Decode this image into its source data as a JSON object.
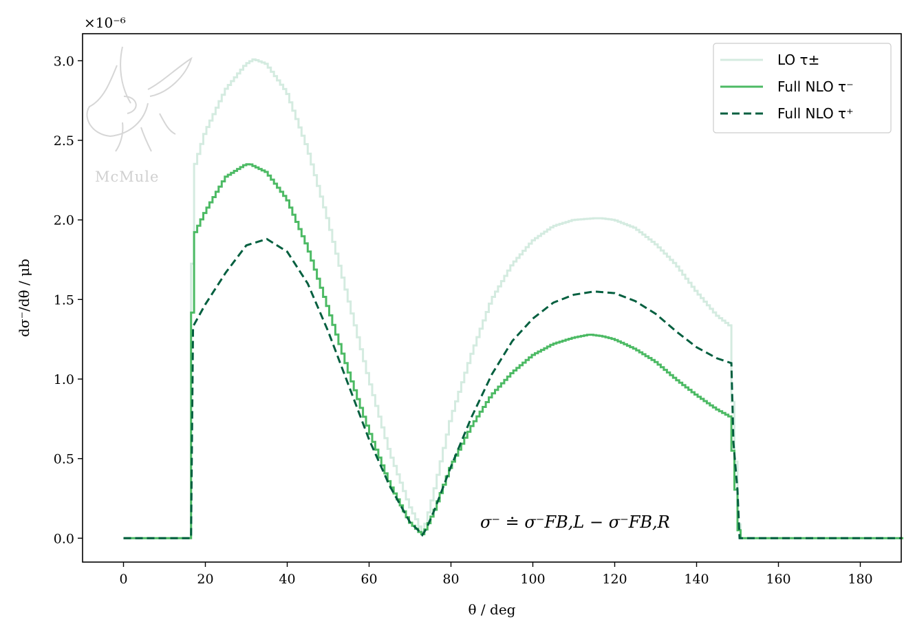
{
  "chart_data": {
    "type": "line",
    "title": "",
    "xlabel": "θ / deg",
    "ylabel": "dσ⁻/dθ / μb",
    "y_multiplier_label": "×10⁻⁶",
    "xlim": [
      -10,
      190
    ],
    "ylim": [
      -0.15,
      3.17
    ],
    "xticks": [
      0,
      20,
      40,
      60,
      80,
      100,
      120,
      140,
      160,
      180
    ],
    "yticks": [
      0.0,
      0.5,
      1.0,
      1.5,
      2.0,
      2.5,
      3.0
    ],
    "xtick_labels": [
      "0",
      "20",
      "40",
      "60",
      "80",
      "100",
      "120",
      "140",
      "160",
      "180"
    ],
    "ytick_labels": [
      "0.0",
      "0.5",
      "1.0",
      "1.5",
      "2.0",
      "2.5",
      "3.0"
    ],
    "legend_position": "top-right",
    "annotation": "σ⁻ ≐ σ⁻FB,L − σ⁻FB,R",
    "watermark": "McMule",
    "series": [
      {
        "name": "LO τ±",
        "style": "step",
        "color": "#d4ebe0",
        "x": [
          0,
          16.5,
          17,
          20,
          25,
          30,
          32,
          35,
          40,
          45,
          50,
          55,
          60,
          65,
          70,
          72,
          73,
          74,
          76,
          80,
          85,
          90,
          95,
          100,
          105,
          110,
          115,
          117,
          120,
          125,
          130,
          135,
          140,
          145,
          148.5,
          149,
          150,
          150.5,
          190
        ],
        "y": [
          0,
          0,
          2.3,
          2.55,
          2.82,
          2.98,
          3.01,
          2.98,
          2.8,
          2.45,
          2.0,
          1.5,
          1.0,
          0.55,
          0.2,
          0.1,
          0.03,
          0.1,
          0.3,
          0.75,
          1.15,
          1.5,
          1.72,
          1.87,
          1.96,
          2.0,
          2.01,
          2.01,
          2.0,
          1.95,
          1.85,
          1.72,
          1.55,
          1.4,
          1.33,
          0.7,
          0.35,
          0,
          0
        ]
      },
      {
        "name": "Full NLO τ⁻",
        "style": "step",
        "color": "#4cba64",
        "x": [
          0,
          16.5,
          17,
          20,
          25,
          30,
          31,
          35,
          40,
          45,
          50,
          55,
          60,
          65,
          70,
          72,
          73,
          74,
          76,
          80,
          85,
          90,
          95,
          100,
          105,
          110,
          114,
          117,
          120,
          125,
          130,
          135,
          140,
          145,
          148.5,
          149,
          150,
          150.5,
          190
        ],
        "y": [
          0,
          0,
          1.89,
          2.05,
          2.27,
          2.35,
          2.35,
          2.3,
          2.13,
          1.83,
          1.45,
          1.05,
          0.68,
          0.35,
          0.1,
          0.05,
          0.02,
          0.06,
          0.17,
          0.45,
          0.7,
          0.9,
          1.04,
          1.15,
          1.22,
          1.26,
          1.28,
          1.27,
          1.25,
          1.19,
          1.11,
          1.0,
          0.9,
          0.81,
          0.76,
          0.48,
          0.2,
          0,
          0
        ]
      },
      {
        "name": "Full NLO τ⁺",
        "style": "dashed",
        "color": "#035f3f",
        "x": [
          0,
          16.5,
          17,
          20,
          25,
          30,
          35,
          40,
          45,
          50,
          55,
          60,
          65,
          70,
          72,
          73,
          74,
          76,
          80,
          85,
          90,
          95,
          100,
          105,
          110,
          115,
          120,
          125,
          130,
          135,
          140,
          145,
          148.5,
          149,
          150,
          150.5,
          190
        ],
        "y": [
          0,
          0,
          1.33,
          1.47,
          1.67,
          1.84,
          1.88,
          1.8,
          1.6,
          1.3,
          0.96,
          0.62,
          0.33,
          0.1,
          0.05,
          0.02,
          0.06,
          0.18,
          0.45,
          0.76,
          1.03,
          1.24,
          1.38,
          1.48,
          1.53,
          1.55,
          1.54,
          1.49,
          1.41,
          1.3,
          1.2,
          1.13,
          1.1,
          0.6,
          0.3,
          0,
          0
        ]
      }
    ]
  }
}
